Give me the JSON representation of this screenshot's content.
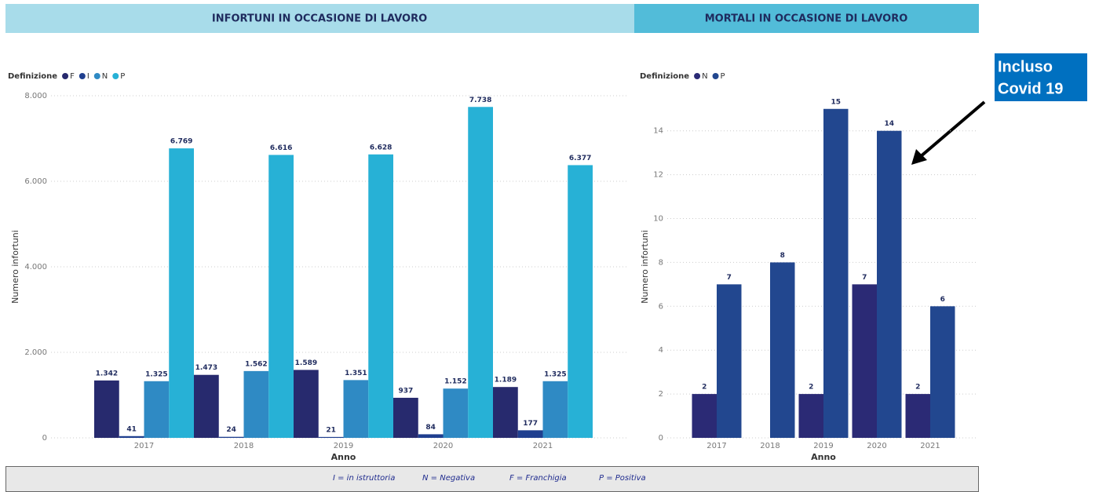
{
  "headers": [
    "INFORTUNI IN OCCASIONE DI LAVORO",
    "MORTALI IN OCCASIONE DI LAVORO"
  ],
  "annotation": [
    "Incluso",
    "Covid 19"
  ],
  "footnote": [
    "I = in istruttoria",
    "N = Negativa",
    "F = Franchigia",
    "P = Positiva"
  ],
  "chart_data": [
    {
      "type": "bar",
      "legend_title": "Definizione",
      "x_label": "Anno",
      "y_label": "Numero infortuni",
      "categories": [
        "2017",
        "2018",
        "2019",
        "2020",
        "2021"
      ],
      "series": [
        {
          "name": "F",
          "color": "#272a6e",
          "values": [
            1342,
            1473,
            1589,
            937,
            1189
          ],
          "value_labels": [
            "1.342",
            "1.473",
            "1.589",
            "937",
            "1.189"
          ]
        },
        {
          "name": "I",
          "color": "#1f3f8f",
          "values": [
            41,
            24,
            21,
            84,
            177
          ]
        },
        {
          "name": "N",
          "color": "#2f8ac4",
          "values": [
            1325,
            1562,
            1351,
            1152,
            1325
          ],
          "value_labels": [
            "1.325",
            "1.562",
            "1.351",
            "1.152",
            "1.325"
          ]
        },
        {
          "name": "P",
          "color": "#27b1d6",
          "values": [
            6769,
            6616,
            6628,
            7738,
            6377
          ],
          "value_labels": [
            "6.769",
            "6.616",
            "6.628",
            "7.738",
            "6.377"
          ]
        }
      ],
      "ylim": [
        0,
        8000
      ],
      "yticks": [
        0,
        {
          "value": 2000,
          "label": "2.000"
        },
        {
          "value": 4000,
          "label": "4.000"
        },
        {
          "value": 6000,
          "label": "6.000"
        },
        {
          "value": 8000,
          "label": "8.000"
        }
      ],
      "grid": true
    },
    {
      "type": "bar",
      "legend_title": "Definizione",
      "x_label": "Anno",
      "y_label": "Numero infortuni",
      "categories": [
        "2017",
        "2018",
        "2019",
        "2020",
        "2021"
      ],
      "series": [
        {
          "name": "N",
          "color": "#2b2a75",
          "values": [
            2,
            null,
            2,
            7,
            2
          ]
        },
        {
          "name": "P",
          "color": "#22478f",
          "values": [
            7,
            8,
            15,
            14,
            6
          ]
        }
      ],
      "ylim": [
        0,
        15.6
      ],
      "yticks": [
        0,
        2,
        4,
        6,
        8,
        10,
        12,
        14
      ],
      "grid": true
    }
  ]
}
